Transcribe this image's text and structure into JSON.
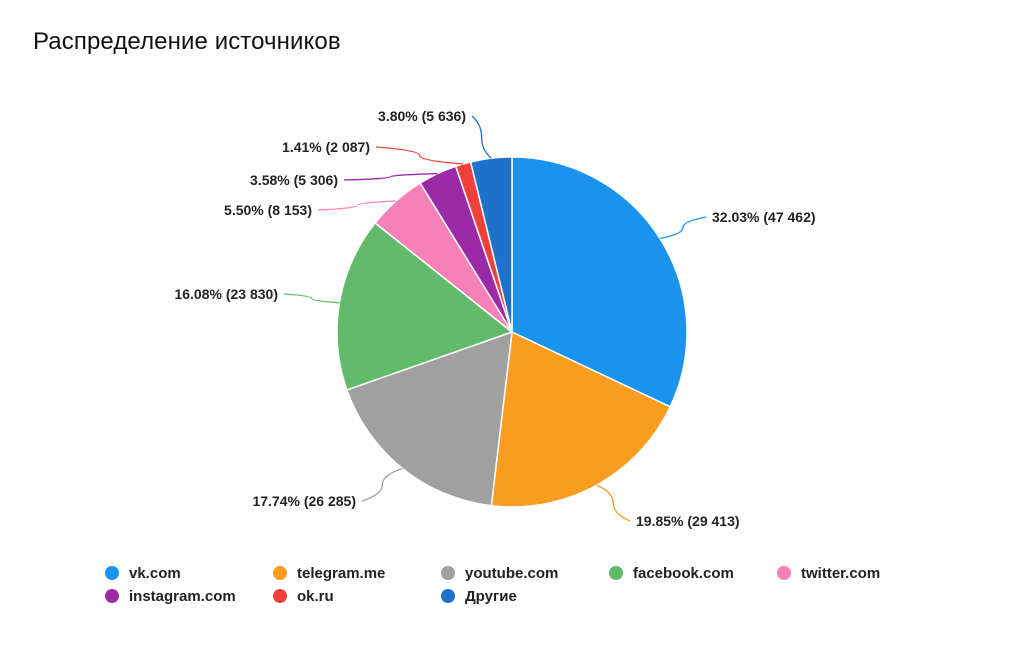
{
  "title": "Распределение источников",
  "chart_data": {
    "type": "pie",
    "title": "Распределение источников",
    "start_angle_deg": 0,
    "direction": "clockwise",
    "legend_position": "bottom",
    "slices": [
      {
        "name": "vk.com",
        "percent": 32.03,
        "count": 47462,
        "label": "32.03% (47 462)",
        "color": "#1a93ee"
      },
      {
        "name": "telegram.me",
        "percent": 19.85,
        "count": 29413,
        "label": "19.85% (29 413)",
        "color": "#f99c20"
      },
      {
        "name": "youtube.com",
        "percent": 17.74,
        "count": 26285,
        "label": "17.74% (26 285)",
        "color": "#a0a0a0"
      },
      {
        "name": "facebook.com",
        "percent": 16.08,
        "count": 23830,
        "label": "16.08% (23 830)",
        "color": "#62bb6a"
      },
      {
        "name": "twitter.com",
        "percent": 5.5,
        "count": 8153,
        "label": "5.50% (8 153)",
        "color": "#f581b8"
      },
      {
        "name": "instagram.com",
        "percent": 3.58,
        "count": 5306,
        "label": "3.58% (5 306)",
        "color": "#9c2aa6"
      },
      {
        "name": "ok.ru",
        "percent": 1.41,
        "count": 2087,
        "label": "1.41% (2 087)",
        "color": "#f0403a"
      },
      {
        "name": "Другие",
        "percent": 3.8,
        "count": 5636,
        "label": "3.80% (5 636)",
        "color": "#1f72c9"
      }
    ]
  },
  "legend": [
    {
      "label": "vk.com",
      "color": "#1a93ee"
    },
    {
      "label": "telegram.me",
      "color": "#f99c20"
    },
    {
      "label": "youtube.com",
      "color": "#a0a0a0"
    },
    {
      "label": "facebook.com",
      "color": "#62bb6a"
    },
    {
      "label": "twitter.com",
      "color": "#f581b8"
    },
    {
      "label": "instagram.com",
      "color": "#9c2aa6"
    },
    {
      "label": "ok.ru",
      "color": "#f0403a"
    },
    {
      "label": "Другие",
      "color": "#1f72c9"
    }
  ]
}
